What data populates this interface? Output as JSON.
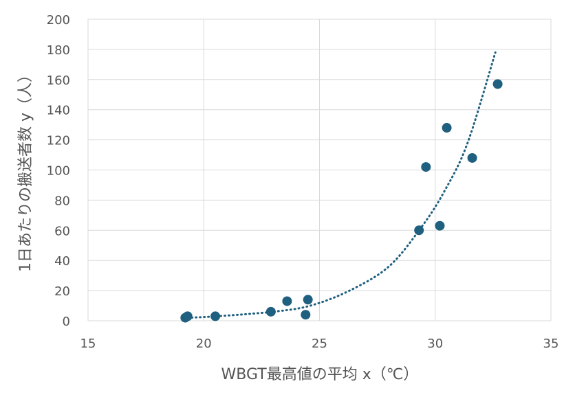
{
  "chart_data": {
    "type": "scatter",
    "title": "",
    "xlabel": "WBGT最高値の平均 x（℃）",
    "ylabel": "1日あたりの搬送者数 y（人）",
    "xlim": [
      15,
      35
    ],
    "ylim": [
      0,
      200
    ],
    "xticks": [
      15,
      20,
      25,
      30,
      35
    ],
    "yticks": [
      0,
      20,
      40,
      60,
      80,
      100,
      120,
      140,
      160,
      180,
      200
    ],
    "grid": true,
    "legend": "none",
    "point_color": "#1f5f7f",
    "series": [
      {
        "points": [
          {
            "x": 19.2,
            "y": 2
          },
          {
            "x": 19.3,
            "y": 3
          },
          {
            "x": 20.5,
            "y": 3
          },
          {
            "x": 22.9,
            "y": 6
          },
          {
            "x": 23.6,
            "y": 13
          },
          {
            "x": 24.4,
            "y": 4
          },
          {
            "x": 24.5,
            "y": 14
          },
          {
            "x": 29.3,
            "y": 60
          },
          {
            "x": 29.6,
            "y": 102
          },
          {
            "x": 30.2,
            "y": 63
          },
          {
            "x": 30.5,
            "y": 128
          },
          {
            "x": 31.6,
            "y": 108
          },
          {
            "x": 32.7,
            "y": 157
          }
        ]
      }
    ],
    "trendline": {
      "type": "exponential",
      "style": "dotted",
      "x_range": [
        19.3,
        32.6
      ],
      "points": [
        {
          "x": 19.3,
          "y": 2
        },
        {
          "x": 20.6,
          "y": 3
        },
        {
          "x": 23,
          "y": 6
        },
        {
          "x": 24.6,
          "y": 10
        },
        {
          "x": 26.3,
          "y": 20
        },
        {
          "x": 28,
          "y": 36
        },
        {
          "x": 29.4,
          "y": 62
        },
        {
          "x": 30.4,
          "y": 86
        },
        {
          "x": 31.4,
          "y": 118
        },
        {
          "x": 32.6,
          "y": 178
        }
      ]
    }
  }
}
